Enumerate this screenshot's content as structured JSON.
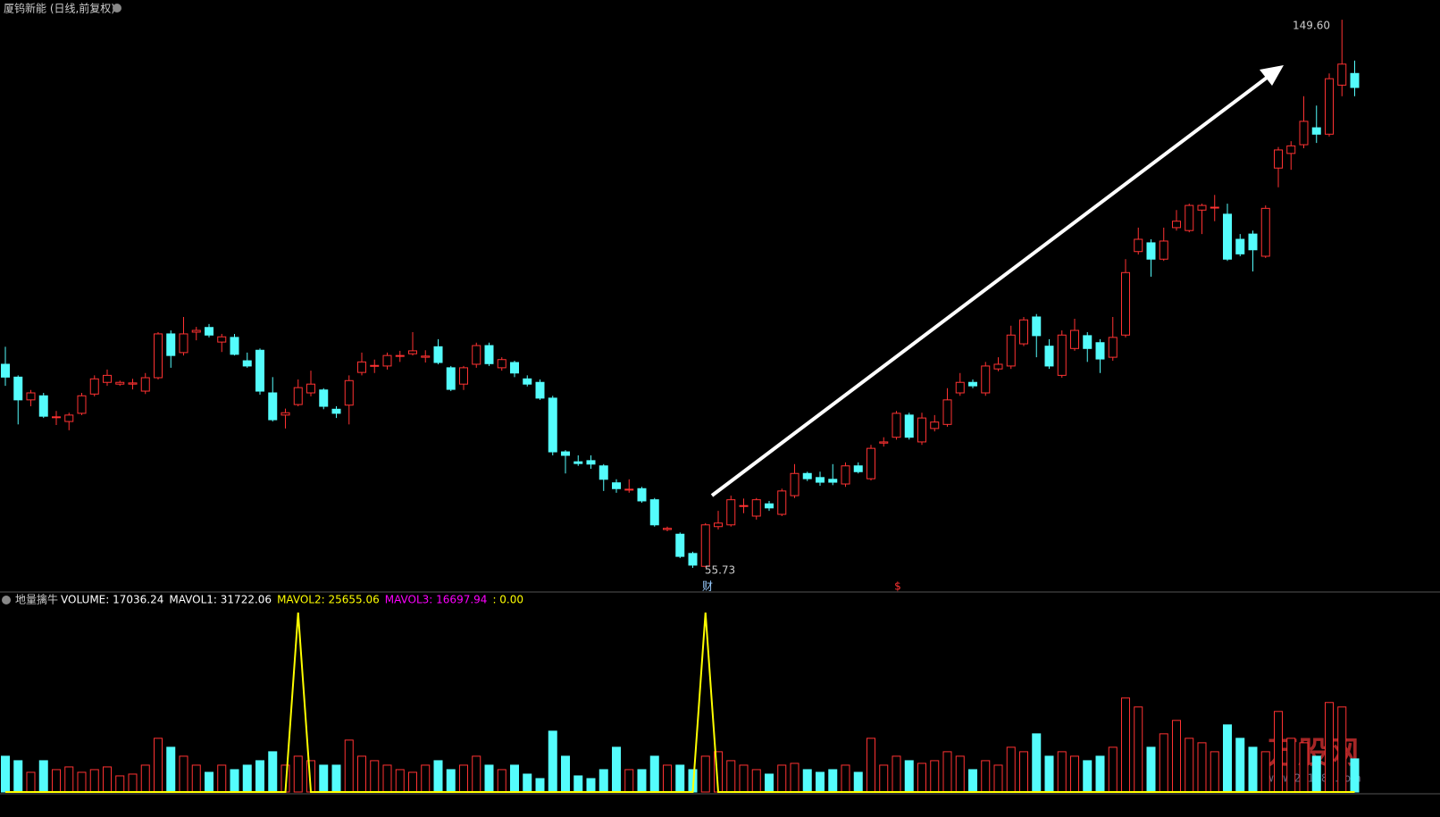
{
  "chart_data": [
    {
      "type": "candlestick",
      "title": "厦钨新能 (日线,前复权)",
      "open": [
        90.6,
        88.4,
        84.5,
        85.2,
        81.6,
        80.8,
        82.2,
        85.5,
        87.5,
        87.2,
        87.2,
        86.0,
        88.3,
        95.8,
        92.6,
        96.1,
        96.9,
        94.4,
        95.2,
        91.2,
        93.0,
        85.7,
        81.9,
        83.7,
        85.7,
        86.2,
        82.9,
        83.6,
        89.2,
        90.3,
        90.3,
        92.0,
        92.4,
        91.8,
        93.6,
        90.0,
        87.2,
        90.6,
        93.8,
        90.0,
        90.9,
        88.1,
        87.5,
        84.8,
        75.6,
        73.9,
        74.1,
        73.2,
        70.3,
        69.2,
        69.3,
        67.4,
        62.3,
        61.5,
        58.2,
        56.0,
        62.8,
        63.1,
        66.4,
        64.6,
        66.7,
        64.9,
        68.1,
        71.9,
        71.2,
        70.9,
        70.1,
        73.2,
        71.0,
        77.1,
        78.1,
        81.9,
        77.3,
        79.6,
        80.3,
        85.7,
        87.5,
        85.7,
        89.8,
        90.3,
        94.1,
        98.7,
        93.7,
        88.7,
        93.3,
        95.5,
        94.3,
        91.8,
        95.6,
        109.9,
        111.4,
        108.6,
        114.0,
        113.5,
        117.0,
        117.5,
        116.3,
        112.0,
        112.9,
        109.1,
        124.2,
        126.7,
        128.2,
        131.1,
        130.0,
        138.4,
        140.4
      ],
      "high": [
        93.6,
        88.7,
        86.2,
        85.7,
        82.6,
        82.3,
        85.7,
        88.7,
        89.7,
        87.8,
        88.1,
        89.1,
        96.1,
        96.4,
        98.7,
        97.0,
        97.5,
        95.8,
        95.8,
        92.6,
        93.3,
        88.4,
        83.0,
        88.0,
        89.5,
        86.5,
        83.4,
        88.7,
        92.6,
        91.4,
        92.6,
        92.9,
        96.1,
        93.0,
        94.9,
        90.3,
        90.3,
        94.3,
        94.3,
        91.8,
        91.2,
        88.7,
        88.0,
        85.2,
        75.9,
        75.0,
        75.0,
        73.5,
        70.9,
        70.9,
        69.6,
        67.7,
        62.8,
        61.8,
        58.5,
        63.4,
        65.5,
        68.1,
        67.6,
        67.7,
        67.2,
        69.3,
        73.5,
        72.2,
        72.2,
        73.5,
        73.8,
        73.8,
        76.8,
        78.1,
        82.6,
        82.3,
        82.3,
        81.9,
        86.5,
        89.1,
        88.0,
        91.0,
        91.8,
        97.2,
        98.7,
        99.2,
        94.9,
        96.4,
        98.4,
        96.1,
        94.9,
        98.7,
        108.6,
        114.0,
        112.0,
        114.0,
        117.0,
        118.1,
        118.1,
        119.6,
        118.1,
        112.9,
        113.5,
        117.8,
        127.8,
        128.8,
        136.5,
        134.9,
        140.4,
        149.6,
        142.6
      ],
      "low": [
        86.9,
        80.3,
        83.4,
        81.4,
        80.2,
        79.3,
        81.9,
        85.1,
        86.9,
        86.9,
        86.3,
        85.5,
        88.0,
        90.0,
        92.1,
        94.7,
        95.2,
        92.7,
        92.1,
        90.0,
        85.4,
        80.8,
        79.6,
        83.4,
        85.1,
        82.9,
        81.4,
        80.3,
        88.7,
        89.1,
        89.7,
        91.0,
        92.1,
        90.9,
        90.6,
        86.0,
        86.2,
        90.0,
        90.3,
        89.5,
        88.4,
        86.8,
        84.5,
        75.0,
        71.9,
        73.2,
        72.7,
        68.9,
        68.6,
        68.6,
        66.9,
        62.8,
        62.0,
        57.4,
        55.73,
        55.8,
        62.3,
        62.8,
        65.1,
        64.0,
        65.5,
        64.6,
        67.7,
        70.6,
        69.8,
        69.9,
        69.6,
        71.9,
        70.7,
        76.5,
        77.7,
        77.7,
        76.8,
        79.1,
        79.9,
        85.2,
        86.5,
        85.2,
        89.4,
        89.8,
        93.7,
        91.8,
        89.8,
        88.3,
        92.9,
        91.0,
        89.1,
        91.2,
        95.2,
        109.4,
        105.6,
        108.3,
        113.5,
        113.2,
        112.9,
        115.1,
        108.3,
        109.1,
        106.5,
        108.8,
        120.9,
        123.9,
        127.6,
        128.5,
        129.6,
        136.5,
        136.5
      ],
      "close": [
        88.4,
        84.5,
        85.7,
        81.7,
        81.6,
        81.9,
        85.2,
        88.1,
        88.7,
        87.5,
        87.4,
        88.3,
        95.8,
        92.1,
        95.8,
        96.4,
        95.6,
        95.3,
        92.3,
        90.3,
        86.0,
        81.1,
        82.3,
        86.6,
        87.2,
        83.4,
        82.2,
        87.8,
        91.0,
        90.4,
        92.1,
        92.1,
        92.9,
        92.0,
        90.9,
        86.3,
        90.0,
        93.8,
        90.7,
        91.4,
        89.1,
        87.2,
        84.8,
        75.6,
        75.0,
        73.6,
        73.5,
        70.9,
        69.3,
        69.2,
        67.2,
        63.1,
        62.5,
        57.7,
        56.2,
        63.1,
        63.4,
        67.4,
        66.4,
        67.4,
        66.0,
        68.9,
        71.9,
        71.0,
        70.4,
        70.4,
        73.2,
        72.2,
        76.2,
        77.3,
        82.2,
        78.1,
        81.4,
        80.7,
        84.5,
        87.5,
        86.9,
        90.3,
        90.6,
        95.6,
        98.2,
        95.5,
        90.3,
        95.6,
        96.4,
        93.3,
        91.5,
        95.2,
        106.3,
        112.0,
        108.6,
        111.7,
        115.1,
        117.8,
        117.8,
        117.5,
        108.6,
        109.5,
        110.2,
        117.3,
        127.3,
        128.0,
        132.2,
        130.0,
        139.5,
        142.0,
        138.0
      ],
      "ylim": [
        52.06,
        152.98
      ],
      "up_color": "#ff3232",
      "down_color": "#54fcfc",
      "annotations": [
        {
          "value": 149.6,
          "label": "149.60"
        },
        {
          "value": 55.73,
          "label": "55.73"
        }
      ],
      "markers": [
        "财",
        "$"
      ]
    },
    {
      "type": "volume",
      "title": "地量擒牛",
      "legend": [
        {
          "text": "VOLUME: 17036.24",
          "color": "#ffffff"
        },
        {
          "text": "MAVOL1: 31722.06",
          "color": "#ffffff"
        },
        {
          "text": "MAVOL2: 25655.06",
          "color": "#ffff00"
        },
        {
          "text": "MAVOL3: 16697.94",
          "color": "#ff00ff"
        },
        {
          "text": ": 0.00",
          "color": "#ffff00"
        }
      ],
      "values": [
        18400,
        16100,
        10120,
        16100,
        11500,
        12880,
        10120,
        11500,
        12880,
        8280,
        9200,
        13800,
        27600,
        23000,
        18400,
        13800,
        10120,
        13800,
        11500,
        13800,
        16100,
        20700,
        13800,
        18400,
        16100,
        13800,
        13800,
        26680,
        18400,
        16100,
        13800,
        11500,
        10120,
        13800,
        16100,
        11500,
        13800,
        18400,
        13800,
        11500,
        13800,
        9200,
        6900,
        31280,
        18400,
        8280,
        6900,
        11500,
        23000,
        11500,
        11500,
        18400,
        13800,
        13800,
        11500,
        18400,
        20700,
        16100,
        13800,
        11500,
        9200,
        13800,
        14720,
        11500,
        10120,
        11500,
        13800,
        10120,
        27600,
        13800,
        18400,
        16100,
        14720,
        16100,
        20700,
        18400,
        11500,
        16100,
        13800,
        23000,
        20700,
        29900,
        18400,
        20700,
        18400,
        16100,
        18400,
        23000,
        48300,
        43700,
        23000,
        29900,
        36800,
        27600,
        25300,
        20700,
        34500,
        27600,
        23000,
        20700,
        41400,
        27600,
        25300,
        18400,
        46000,
        43700,
        17036.24
      ],
      "ylim": [
        0,
        95000
      ],
      "signal": {
        "color": "#ffff00",
        "values": [
          0,
          0,
          0,
          0,
          0,
          0,
          0,
          0,
          0,
          0,
          0,
          0,
          0,
          0,
          0,
          0,
          0,
          0,
          0,
          0,
          0,
          0,
          0,
          1,
          0,
          0,
          0,
          0,
          0,
          0,
          0,
          0,
          0,
          0,
          0,
          0,
          0,
          0,
          0,
          0,
          0,
          0,
          0,
          0,
          0,
          0,
          0,
          0,
          0,
          0,
          0,
          0,
          0,
          0,
          0,
          1,
          0,
          0,
          0,
          0,
          0,
          0,
          0,
          0,
          0,
          0,
          0,
          0,
          0,
          0,
          0,
          0,
          0,
          0,
          0,
          0,
          0,
          0,
          0,
          0,
          0,
          0,
          0,
          0,
          0,
          0,
          0,
          0,
          0,
          0,
          0,
          0,
          0,
          0,
          0,
          0,
          0,
          0,
          0,
          0,
          0,
          0,
          0,
          0,
          0,
          0,
          0
        ]
      },
      "y2lim": [
        0,
        1.03
      ],
      "watermark": [
        "万股网",
        "www.201082.com"
      ]
    }
  ]
}
